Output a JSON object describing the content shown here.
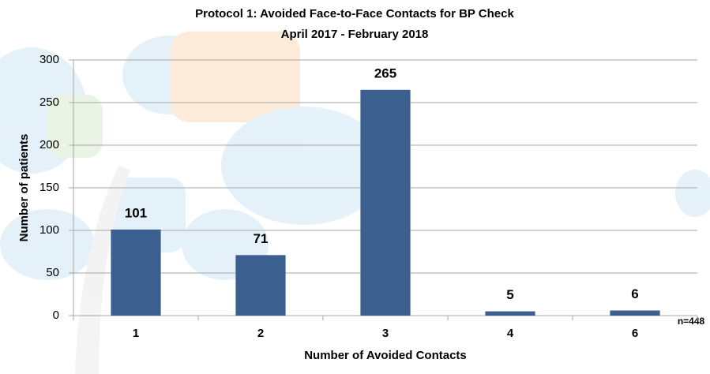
{
  "chart_data": {
    "type": "bar",
    "title": "Protocol 1:  Avoided Face-to-Face Contacts for BP Check",
    "subtitle": "April 2017 - February 2018",
    "x_label": "Number of Avoided Contacts",
    "y_label": "Number of patients",
    "annotation": "n=448",
    "categories": [
      "1",
      "2",
      "3",
      "4",
      "6"
    ],
    "values": [
      101,
      71,
      265,
      5,
      6
    ],
    "color": "#3b5f8e",
    "ylim": [
      0,
      300
    ],
    "yticks": [
      0,
      50,
      100,
      150,
      200,
      250,
      300
    ],
    "grid": true
  }
}
